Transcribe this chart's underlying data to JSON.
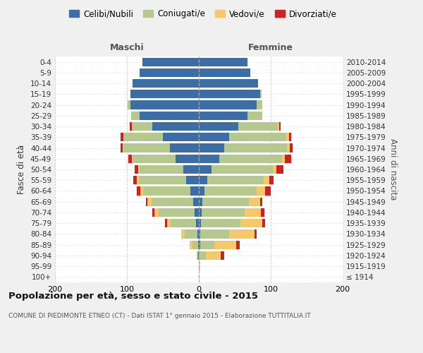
{
  "age_groups": [
    "100+",
    "95-99",
    "90-94",
    "85-89",
    "80-84",
    "75-79",
    "70-74",
    "65-69",
    "60-64",
    "55-59",
    "50-54",
    "45-49",
    "40-44",
    "35-39",
    "30-34",
    "25-29",
    "20-24",
    "15-19",
    "10-14",
    "5-9",
    "0-4"
  ],
  "birth_years": [
    "≤ 1914",
    "1915-1919",
    "1920-1924",
    "1925-1929",
    "1930-1934",
    "1935-1939",
    "1940-1944",
    "1945-1949",
    "1950-1954",
    "1955-1959",
    "1960-1964",
    "1965-1969",
    "1970-1974",
    "1975-1979",
    "1980-1984",
    "1985-1989",
    "1990-1994",
    "1995-1999",
    "2000-2004",
    "2005-2009",
    "2010-2014"
  ],
  "colors": {
    "celibe": "#3c6ea5",
    "coniugato": "#b5c98e",
    "vedovo": "#f5c96a",
    "divorziato": "#cc2222"
  },
  "maschi": {
    "celibe": [
      0,
      0,
      1,
      1,
      2,
      4,
      6,
      8,
      12,
      18,
      22,
      32,
      40,
      50,
      65,
      82,
      95,
      95,
      92,
      82,
      78
    ],
    "coniugato": [
      0,
      0,
      2,
      8,
      18,
      35,
      50,
      58,
      65,
      65,
      60,
      60,
      65,
      55,
      28,
      12,
      4,
      0,
      0,
      0,
      0
    ],
    "vedovo": [
      0,
      0,
      0,
      4,
      5,
      5,
      6,
      6,
      4,
      3,
      2,
      1,
      1,
      0,
      0,
      0,
      0,
      0,
      0,
      0,
      0
    ],
    "divorziato": [
      0,
      0,
      0,
      0,
      0,
      3,
      3,
      2,
      5,
      5,
      5,
      5,
      3,
      4,
      3,
      0,
      0,
      0,
      0,
      0,
      0
    ]
  },
  "femmine": {
    "nubile": [
      0,
      0,
      0,
      2,
      2,
      3,
      4,
      5,
      8,
      12,
      18,
      28,
      35,
      42,
      55,
      68,
      80,
      85,
      82,
      72,
      68
    ],
    "coniugata": [
      0,
      0,
      10,
      20,
      40,
      55,
      60,
      65,
      72,
      78,
      85,
      88,
      88,
      80,
      55,
      20,
      8,
      2,
      0,
      0,
      0
    ],
    "vedova": [
      0,
      2,
      20,
      30,
      35,
      30,
      22,
      15,
      12,
      8,
      5,
      4,
      3,
      3,
      2,
      0,
      0,
      0,
      0,
      0,
      0
    ],
    "divorziata": [
      0,
      0,
      5,
      5,
      3,
      4,
      5,
      3,
      8,
      6,
      10,
      8,
      4,
      3,
      2,
      0,
      0,
      0,
      0,
      0,
      0
    ]
  },
  "xlim": 200,
  "title": "Popolazione per età, sesso e stato civile - 2015",
  "subtitle": "COMUNE DI PIEDIMONTE ETNEO (CT) - Dati ISTAT 1° gennaio 2015 - Elaborazione TUTTITALIA.IT",
  "ylabel_left": "Fasce di età",
  "ylabel_right": "Anni di nascita",
  "xlabel_left": "Maschi",
  "xlabel_right": "Femmine",
  "bg_color": "#f0f0f0",
  "plot_bg": "#ffffff",
  "grid_color": "#cccccc"
}
